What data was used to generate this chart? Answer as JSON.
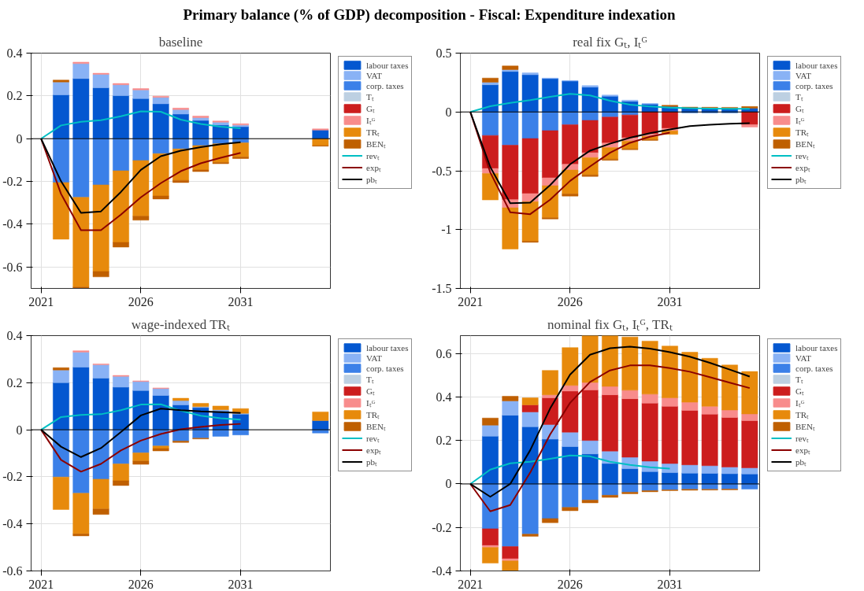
{
  "chart_data": [
    {
      "type": "bar",
      "title": "Primary balance (% of GDP) decomposition - Fiscal: Expenditure indexation",
      "subtitle": "baseline",
      "stacked": true,
      "grid": true,
      "legend": "right",
      "xlim": [
        2020.5,
        2035.5
      ],
      "xticks": [
        2021,
        2026,
        2031
      ],
      "ylim": [
        -0.7,
        0.4
      ],
      "yticks": [
        -0.6,
        -0.4,
        -0.2,
        0,
        0.2,
        0.4
      ],
      "ref_lines": [
        {
          "axis": "y",
          "value": 0,
          "color": "#000000"
        }
      ],
      "x": [
        2021,
        2022,
        2023,
        2024,
        2025,
        2026,
        2027,
        2028,
        2029,
        2030,
        2031,
        2032,
        2033,
        2034,
        2035
      ],
      "series": [
        {
          "name": "labour taxes",
          "color": "#0457d0",
          "values": [
            null,
            0.205,
            0.281,
            0.238,
            0.201,
            0.188,
            0.163,
            0.115,
            0.085,
            0.064,
            0.056,
            null,
            null,
            null,
            0.04
          ]
        },
        {
          "name": "VAT",
          "color": "#89b2f5",
          "values": [
            null,
            0.06,
            0.07,
            0.063,
            0.051,
            0.04,
            0.03,
            0.021,
            0.013,
            0.013,
            0.008,
            null,
            null,
            null,
            null
          ]
        },
        {
          "name": "corp. taxes",
          "color": "#3b80e8",
          "values": [
            null,
            -0.205,
            -0.274,
            -0.216,
            -0.15,
            -0.102,
            -0.07,
            -0.048,
            -0.032,
            -0.024,
            -0.019,
            null,
            null,
            null,
            null
          ]
        },
        {
          "name": "Tₜ",
          "color": "#bdd0e2",
          "values": [
            null,
            null,
            null,
            null,
            null,
            null,
            null,
            null,
            null,
            null,
            null,
            null,
            null,
            null,
            null
          ]
        },
        {
          "name": "Gₜ",
          "color": "#cc1d1d",
          "values": [
            null,
            null,
            null,
            null,
            null,
            null,
            null,
            null,
            null,
            null,
            null,
            null,
            null,
            null,
            null
          ]
        },
        {
          "name": "Iₜᴳ",
          "color": "#f88c8c",
          "values": [
            null,
            null,
            0.007,
            0.005,
            0.006,
            0.006,
            0.006,
            0.007,
            0.008,
            0.006,
            0.006,
            null,
            null,
            null,
            0.006
          ]
        },
        {
          "name": "TRₜ",
          "color": "#e78a0c",
          "values": [
            null,
            -0.265,
            -0.42,
            -0.405,
            -0.335,
            -0.26,
            -0.198,
            -0.147,
            -0.114,
            -0.087,
            -0.067,
            null,
            null,
            null,
            -0.032
          ]
        },
        {
          "name": "BENₜ",
          "color": "#bf5f00",
          "values": [
            null,
            0.009,
            -0.004,
            -0.025,
            -0.022,
            -0.019,
            -0.014,
            -0.01,
            -0.008,
            -0.006,
            -0.007,
            null,
            null,
            null,
            -0.003
          ]
        },
        {
          "name": "revₜ",
          "type": "line",
          "color": "#00bfc4",
          "values": [
            0,
            0.062,
            0.079,
            0.086,
            0.105,
            0.128,
            0.126,
            0.089,
            0.069,
            0.056,
            0.049,
            null,
            null,
            null,
            null
          ]
        },
        {
          "name": "expₜ",
          "type": "line",
          "color": "#8b0000",
          "values": [
            0,
            -0.258,
            -0.428,
            -0.428,
            -0.355,
            -0.274,
            -0.208,
            -0.152,
            -0.115,
            -0.089,
            -0.066,
            null,
            null,
            null,
            null
          ]
        },
        {
          "name": "pbₜ",
          "type": "line",
          "color": "#000000",
          "values": [
            0,
            -0.199,
            -0.347,
            -0.34,
            -0.249,
            -0.146,
            -0.082,
            -0.056,
            -0.04,
            -0.026,
            -0.017,
            null,
            null,
            null,
            null
          ]
        }
      ]
    },
    {
      "type": "bar",
      "title": "real fix Gₜ, Iₜᴳ",
      "stacked": true,
      "grid": true,
      "legend": "right",
      "xlim": [
        2020.5,
        2035.5
      ],
      "xticks": [
        2021,
        2026,
        2031
      ],
      "ylim": [
        -1.5,
        0.5
      ],
      "yticks": [
        -1.5,
        -1,
        -0.5,
        0,
        0.5
      ],
      "ref_lines": [
        {
          "axis": "y",
          "value": 0,
          "color": "#000000"
        }
      ],
      "x": [
        2021,
        2022,
        2023,
        2024,
        2025,
        2026,
        2027,
        2028,
        2029,
        2030,
        2031,
        2032,
        2033,
        2034,
        2035
      ],
      "series": [
        {
          "name": "labour taxes",
          "color": "#0457d0",
          "values": [
            null,
            0.231,
            0.344,
            0.316,
            0.283,
            0.262,
            0.211,
            0.134,
            0.09,
            0.067,
            0.046,
            0.031,
            0.03,
            0.029,
            0.031
          ]
        },
        {
          "name": "VAT",
          "color": "#89b2f5",
          "values": [
            null,
            0.021,
            0.016,
            0.016,
            0.005,
            0.005,
            0.013,
            0.01,
            0.01,
            0.005,
            null,
            null,
            null,
            null,
            null
          ]
        },
        {
          "name": "corp. taxes",
          "color": "#3b80e8",
          "values": [
            null,
            -0.2,
            -0.283,
            -0.226,
            -0.159,
            -0.108,
            -0.072,
            -0.044,
            -0.026,
            null,
            null,
            -0.008,
            -0.008,
            -0.008,
            null
          ]
        },
        {
          "name": "Tₜ",
          "color": "#bdd0e2",
          "values": [
            null,
            null,
            null,
            null,
            null,
            null,
            null,
            null,
            null,
            null,
            null,
            null,
            null,
            null,
            null
          ]
        },
        {
          "name": "Gₜ",
          "color": "#cc1d1d",
          "values": [
            null,
            -0.281,
            -0.463,
            -0.468,
            -0.401,
            -0.337,
            -0.275,
            -0.221,
            -0.193,
            -0.188,
            -0.139,
            null,
            null,
            null,
            -0.108
          ]
        },
        {
          "name": "Iₜᴳ",
          "color": "#f88c8c",
          "values": [
            null,
            -0.043,
            -0.069,
            -0.069,
            -0.067,
            -0.049,
            -0.041,
            -0.038,
            -0.028,
            -0.02,
            -0.021,
            null,
            null,
            null,
            -0.02
          ]
        },
        {
          "name": "TRₜ",
          "color": "#e78a0c",
          "values": [
            null,
            -0.224,
            -0.35,
            -0.335,
            -0.273,
            -0.203,
            -0.147,
            -0.098,
            -0.067,
            -0.026,
            -0.031,
            null,
            null,
            null,
            null
          ]
        },
        {
          "name": "BENₜ",
          "color": "#bf5f00",
          "values": [
            null,
            0.036,
            0.031,
            -0.01,
            -0.01,
            -0.018,
            -0.013,
            -0.01,
            -0.007,
            -0.008,
            0.011,
            0.01,
            0.01,
            0.01,
            0.015
          ]
        },
        {
          "name": "revₜ",
          "type": "line",
          "color": "#00bfc4",
          "values": [
            0,
            0.049,
            0.077,
            0.1,
            0.129,
            0.154,
            0.141,
            0.095,
            0.062,
            0.046,
            0.036,
            0.031,
            0.028,
            0.026,
            0.026
          ]
        },
        {
          "name": "expₜ",
          "type": "line",
          "color": "#8b0000",
          "values": [
            0,
            -0.514,
            -0.853,
            -0.869,
            -0.746,
            -0.586,
            -0.463,
            -0.347,
            -0.262,
            -0.211,
            -0.175,
            null,
            null,
            null,
            null
          ]
        },
        {
          "name": "pbₜ",
          "type": "line",
          "color": "#000000",
          "values": [
            0,
            -0.468,
            -0.776,
            -0.771,
            -0.622,
            -0.445,
            -0.329,
            -0.27,
            -0.219,
            -0.18,
            -0.149,
            -0.12,
            -0.108,
            -0.1,
            -0.095
          ]
        }
      ]
    },
    {
      "type": "bar",
      "title": "wage-indexed TRₜ",
      "stacked": true,
      "grid": true,
      "legend": "right",
      "xlim": [
        2020.5,
        2035.5
      ],
      "xticks": [
        2021,
        2026,
        2031
      ],
      "ylim": [
        -0.6,
        0.4
      ],
      "yticks": [
        -0.6,
        -0.4,
        -0.2,
        0,
        0.2,
        0.4
      ],
      "ref_lines": [
        {
          "axis": "y",
          "value": 0,
          "color": "#000000"
        }
      ],
      "x": [
        2021,
        2022,
        2023,
        2024,
        2025,
        2026,
        2027,
        2028,
        2029,
        2030,
        2031,
        2032,
        2033,
        2034,
        2035
      ],
      "series": [
        {
          "name": "labour taxes",
          "color": "#0457d0",
          "values": [
            null,
            0.2,
            0.266,
            0.219,
            0.181,
            0.167,
            0.146,
            0.106,
            0.094,
            0.08,
            0.066,
            null,
            null,
            null,
            0.039
          ]
        },
        {
          "name": "VAT",
          "color": "#89b2f5",
          "values": [
            null,
            0.054,
            0.064,
            0.057,
            0.046,
            0.038,
            0.029,
            0.018,
            0.004,
            0.005,
            0.004,
            null,
            null,
            null,
            null
          ]
        },
        {
          "name": "corp. taxes",
          "color": "#3b80e8",
          "values": [
            null,
            -0.201,
            -0.27,
            -0.21,
            -0.145,
            -0.098,
            -0.069,
            -0.048,
            -0.036,
            -0.028,
            -0.022,
            null,
            null,
            null,
            -0.014
          ]
        },
        {
          "name": "Tₜ",
          "color": "#bdd0e2",
          "values": [
            null,
            null,
            null,
            null,
            null,
            null,
            null,
            null,
            null,
            null,
            null,
            null,
            null,
            null,
            null
          ]
        },
        {
          "name": "Gₜ",
          "color": "#cc1d1d",
          "values": [
            null,
            null,
            null,
            null,
            null,
            null,
            null,
            null,
            null,
            null,
            null,
            null,
            null,
            null,
            null
          ]
        },
        {
          "name": "Iₜᴳ",
          "color": "#f88c8c",
          "values": [
            null,
            null,
            0.006,
            0.004,
            0.004,
            0.003,
            0.003,
            null,
            null,
            null,
            null,
            null,
            null,
            null,
            null
          ]
        },
        {
          "name": "TRₜ",
          "color": "#e78a0c",
          "values": [
            null,
            -0.138,
            -0.173,
            -0.127,
            -0.072,
            -0.035,
            -0.011,
            0.01,
            0.014,
            0.016,
            0.02,
            null,
            null,
            null,
            0.037
          ]
        },
        {
          "name": "BENₜ",
          "color": "#bf5f00",
          "values": [
            null,
            0.01,
            -0.008,
            -0.023,
            -0.02,
            -0.014,
            -0.01,
            -0.006,
            -0.003,
            null,
            null,
            null,
            null,
            null,
            null
          ]
        },
        {
          "name": "revₜ",
          "type": "line",
          "color": "#00bfc4",
          "values": [
            0,
            0.054,
            0.063,
            0.066,
            0.083,
            0.107,
            0.108,
            0.081,
            0.06,
            0.049,
            0.043,
            null,
            null,
            null,
            null
          ]
        },
        {
          "name": "expₜ",
          "type": "line",
          "color": "#8b0000",
          "values": [
            0,
            -0.128,
            -0.178,
            -0.145,
            -0.088,
            -0.046,
            -0.018,
            0.002,
            0.012,
            0.02,
            0.025,
            null,
            null,
            null,
            null
          ]
        },
        {
          "name": "pbₜ",
          "type": "line",
          "color": "#000000",
          "values": [
            0,
            -0.072,
            -0.116,
            -0.078,
            -0.01,
            0.061,
            0.09,
            0.083,
            0.078,
            0.075,
            0.071,
            null,
            null,
            null,
            null
          ]
        }
      ]
    },
    {
      "type": "bar",
      "title": "nominal fix Gₜ, Iₜᴳ, TRₜ",
      "stacked": true,
      "grid": true,
      "legend": "right",
      "xlim": [
        2020.5,
        2035.5
      ],
      "xticks": [
        2021,
        2026,
        2031
      ],
      "ylim": [
        -0.4,
        0.682
      ],
      "yticks": [
        -0.4,
        -0.2,
        0,
        0.2,
        0.4,
        0.6
      ],
      "ref_lines": [
        {
          "axis": "y",
          "value": 0,
          "color": "#000000"
        }
      ],
      "x": [
        2021,
        2022,
        2023,
        2024,
        2025,
        2026,
        2027,
        2028,
        2029,
        2030,
        2031,
        2032,
        2033,
        2034,
        2035
      ],
      "series": [
        {
          "name": "labour taxes",
          "color": "#0457d0",
          "values": [
            null,
            0.22,
            0.316,
            0.263,
            0.206,
            0.172,
            0.138,
            0.094,
            0.07,
            0.057,
            0.052,
            0.05,
            0.049,
            0.047,
            0.046
          ]
        },
        {
          "name": "VAT",
          "color": "#89b2f5",
          "values": [
            null,
            0.05,
            0.066,
            0.068,
            0.067,
            0.066,
            0.062,
            0.057,
            0.053,
            0.048,
            0.042,
            0.038,
            0.035,
            0.031,
            0.028
          ]
        },
        {
          "name": "corp. taxes",
          "color": "#3b80e8",
          "values": [
            null,
            -0.206,
            -0.288,
            -0.231,
            -0.159,
            -0.108,
            -0.074,
            -0.052,
            -0.038,
            -0.031,
            -0.027,
            -0.025,
            -0.025,
            -0.024,
            -0.024
          ]
        },
        {
          "name": "Tₜ",
          "color": "#bdd0e2",
          "values": [
            null,
            null,
            null,
            null,
            null,
            null,
            null,
            null,
            null,
            null,
            null,
            null,
            null,
            null,
            null
          ]
        },
        {
          "name": "Gₜ",
          "color": "#cc1d1d",
          "values": [
            null,
            -0.077,
            -0.056,
            0.033,
            0.123,
            0.189,
            0.232,
            0.259,
            0.269,
            0.267,
            0.263,
            0.25,
            0.237,
            0.228,
            0.217
          ]
        },
        {
          "name": "Iₜᴳ",
          "color": "#f88c8c",
          "values": [
            null,
            -0.009,
            -0.01,
            null,
            0.014,
            0.026,
            0.035,
            0.039,
            0.039,
            0.041,
            0.039,
            0.038,
            0.036,
            0.034,
            0.031
          ]
        },
        {
          "name": "TRₜ",
          "color": "#e78a0c",
          "values": [
            null,
            -0.072,
            -0.046,
            0.032,
            0.112,
            0.174,
            0.215,
            0.233,
            0.245,
            0.244,
            0.238,
            0.23,
            0.221,
            0.207,
            0.195
          ]
        },
        {
          "name": "BENₜ",
          "color": "#bf5f00",
          "values": [
            null,
            0.033,
            0.021,
            -0.01,
            -0.019,
            -0.015,
            -0.013,
            -0.01,
            -0.007,
            -0.005,
            -0.004,
            -0.004,
            -0.003,
            -0.003,
            null
          ]
        },
        {
          "name": "revₜ",
          "type": "line",
          "color": "#00bfc4",
          "values": [
            0,
            0.066,
            0.095,
            0.102,
            0.116,
            0.131,
            0.127,
            0.102,
            0.088,
            0.077,
            0.07,
            null,
            null,
            null,
            null
          ]
        },
        {
          "name": "expₜ",
          "type": "line",
          "color": "#8b0000",
          "values": [
            0,
            -0.126,
            -0.097,
            0.052,
            0.228,
            0.373,
            0.469,
            0.522,
            0.545,
            0.545,
            0.533,
            0.516,
            0.491,
            0.466,
            0.441
          ]
        },
        {
          "name": "pbₜ",
          "type": "line",
          "color": "#000000",
          "values": [
            0,
            -0.059,
            0,
            0.155,
            0.347,
            0.503,
            0.594,
            0.624,
            0.631,
            0.622,
            0.606,
            0.585,
            0.557,
            0.526,
            0.494
          ]
        }
      ]
    }
  ]
}
